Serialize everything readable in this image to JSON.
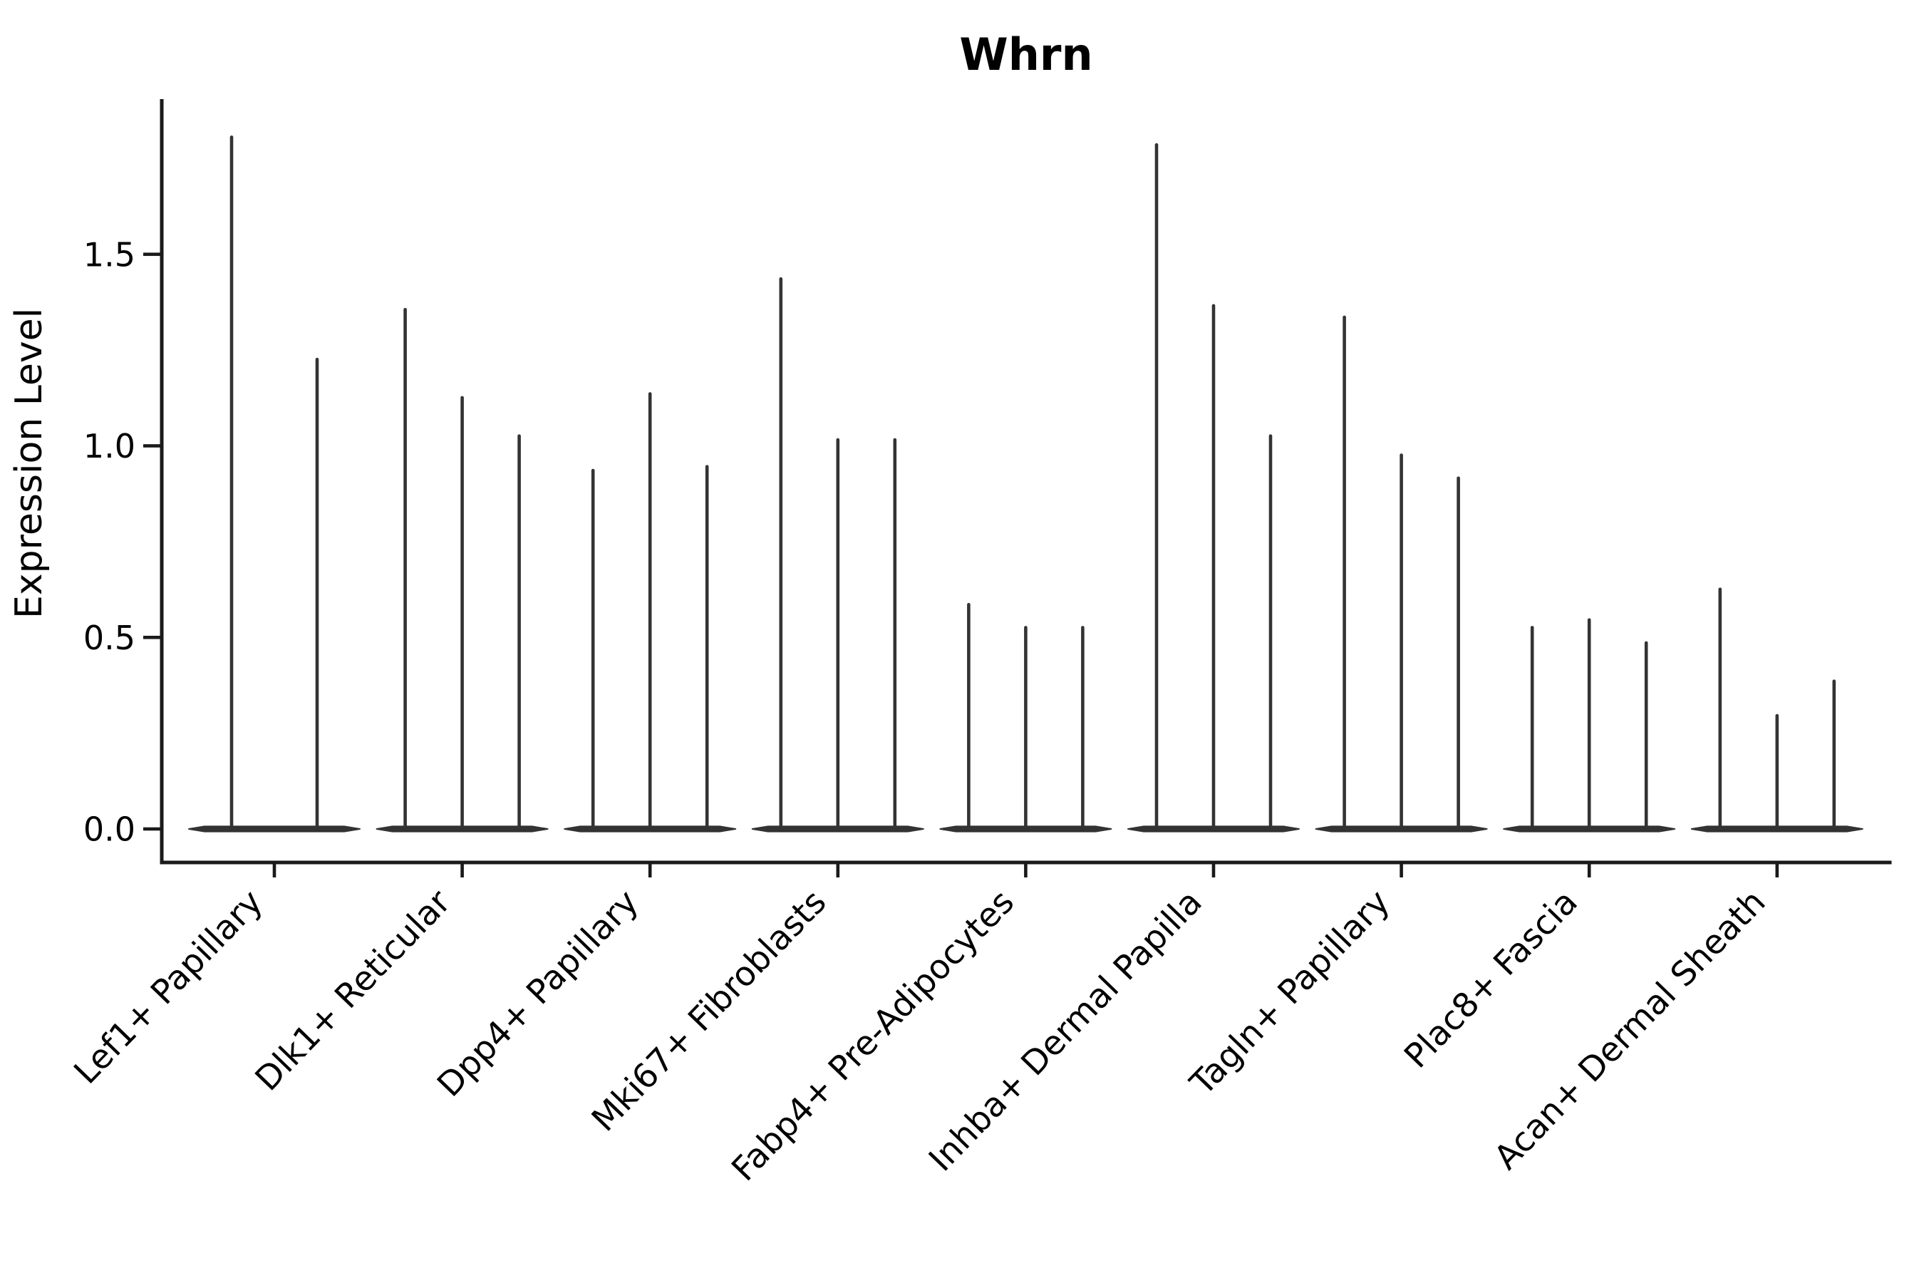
{
  "chart_data": {
    "type": "violin",
    "title": "Whrn",
    "ylabel": "Expression Level",
    "xlabel": "",
    "ylim": [
      -0.09,
      1.9
    ],
    "yticks": [
      "0.0",
      "0.5",
      "1.0",
      "1.5"
    ],
    "ytick_values": [
      0.0,
      0.5,
      1.0,
      1.5
    ],
    "grid": false,
    "legend_position": "none",
    "categories": [
      "Lef1+ Papillary",
      "Dlk1+ Reticular",
      "Dpp4+ Papillary",
      "Mki67+ Fibroblasts",
      "Fabp4+ Pre-Adipocytes",
      "Inhba+ Dermal Papilla",
      "Tagln+ Papillary",
      "Plac8+ Fascia",
      "Acan+ Dermal Sheath"
    ],
    "groups": [
      {
        "category": "Lef1+ Papillary",
        "violin_max_values": [
          1.81,
          1.23
        ]
      },
      {
        "category": "Dlk1+ Reticular",
        "violin_max_values": [
          1.36,
          1.13,
          1.03
        ]
      },
      {
        "category": "Dpp4+ Papillary",
        "violin_max_values": [
          0.94,
          1.14,
          0.95
        ]
      },
      {
        "category": "Mki67+ Fibroblasts",
        "violin_max_values": [
          1.44,
          1.02,
          1.02
        ]
      },
      {
        "category": "Fabp4+ Pre-Adipocytes",
        "violin_max_values": [
          0.59,
          0.53,
          0.53
        ]
      },
      {
        "category": "Inhba+ Dermal Papilla",
        "violin_max_values": [
          1.79,
          1.37,
          1.03
        ]
      },
      {
        "category": "Tagln+ Papillary",
        "violin_max_values": [
          1.34,
          0.98,
          0.92
        ]
      },
      {
        "category": "Plac8+ Fascia",
        "violin_max_values": [
          0.53,
          0.55,
          0.49
        ]
      },
      {
        "category": "Acan+ Dermal Sheath",
        "violin_max_values": [
          0.63,
          0.3,
          0.39
        ]
      }
    ],
    "description": "Violin plot of Whrn expression; distributions concentrated at 0 with thin spikes up to each maximum.",
    "colors": {
      "violin": "#333333",
      "axis": "#1a1a1a",
      "text": "#000000",
      "background": "#ffffff"
    }
  }
}
